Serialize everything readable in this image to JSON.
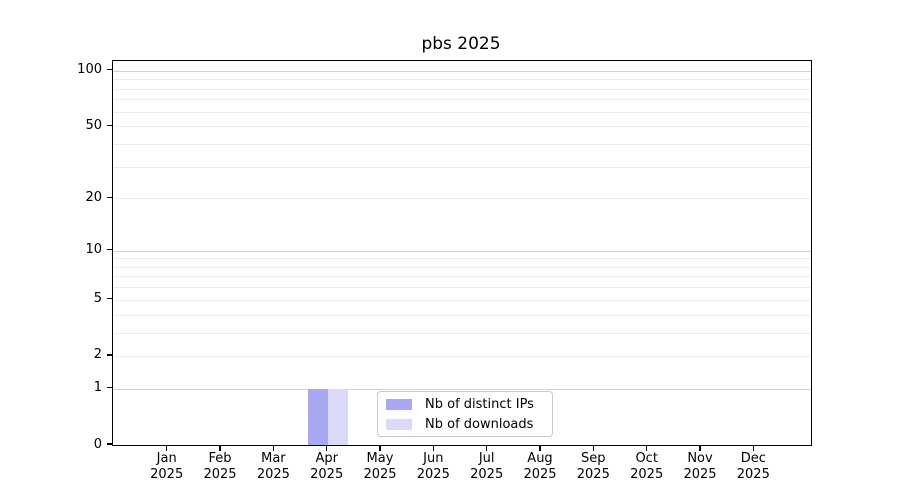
{
  "chart_data": {
    "type": "bar",
    "title": "pbs 2025",
    "x_categories": [
      {
        "month": "Jan",
        "year": "2025"
      },
      {
        "month": "Feb",
        "year": "2025"
      },
      {
        "month": "Mar",
        "year": "2025"
      },
      {
        "month": "Apr",
        "year": "2025"
      },
      {
        "month": "May",
        "year": "2025"
      },
      {
        "month": "Jun",
        "year": "2025"
      },
      {
        "month": "Jul",
        "year": "2025"
      },
      {
        "month": "Aug",
        "year": "2025"
      },
      {
        "month": "Sep",
        "year": "2025"
      },
      {
        "month": "Oct",
        "year": "2025"
      },
      {
        "month": "Nov",
        "year": "2025"
      },
      {
        "month": "Dec",
        "year": "2025"
      }
    ],
    "series": [
      {
        "name": "Nb of distinct IPs",
        "color": "#a8a8f2",
        "values": [
          0,
          0,
          0,
          1,
          0,
          0,
          0,
          0,
          0,
          0,
          0,
          0
        ]
      },
      {
        "name": "Nb of downloads",
        "color": "#dadaf8",
        "values": [
          0,
          0,
          0,
          1,
          0,
          0,
          0,
          0,
          0,
          0,
          0,
          0
        ]
      }
    ],
    "y_axis": {
      "scale": "log1p",
      "max": 113,
      "ticks": [
        0,
        1,
        2,
        5,
        10,
        20,
        50,
        100
      ],
      "major_gridlines": [
        1,
        10,
        100
      ],
      "minor_gridlines": [
        2,
        3,
        4,
        5,
        6,
        7,
        8,
        9,
        20,
        30,
        40,
        50,
        60,
        70,
        80,
        90
      ]
    },
    "legend": {
      "position": "lower center",
      "entries": [
        "Nb of distinct IPs",
        "Nb of downloads"
      ]
    },
    "colors": {
      "background": "#ffffff",
      "axis": "#000000",
      "major_grid": "#d2d2d2",
      "minor_grid": "#ececec",
      "legend_border": "#c8c8c8"
    }
  }
}
